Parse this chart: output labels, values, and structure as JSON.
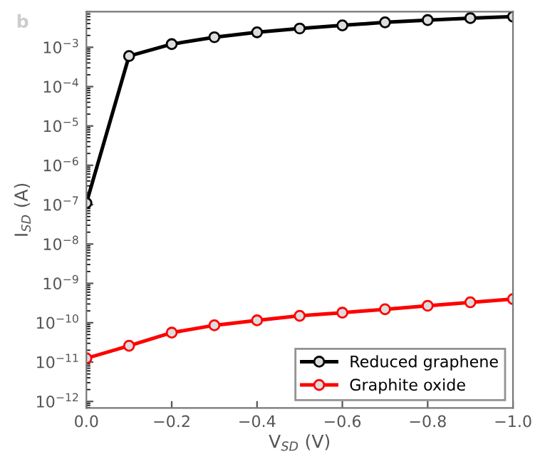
{
  "chart_data": {
    "type": "line",
    "xlabel": "V$_{SD}$ (V)",
    "ylabel": "I$_{SD}$ (A)",
    "annotations": [
      "b"
    ],
    "x": [
      0,
      -0.1,
      -0.2,
      -0.3,
      -0.4,
      -0.5,
      -0.6,
      -0.7,
      -0.8,
      -0.9,
      -1.0
    ],
    "series": [
      {
        "name": "Reduced graphene",
        "color": "#000000",
        "values": [
          1.1e-07,
          0.0006,
          0.0012,
          0.0018,
          0.0024,
          0.003,
          0.0036,
          0.0043,
          0.0049,
          0.0055,
          0.006
        ]
      },
      {
        "name": "Graphite oxide",
        "color": "#ff0000",
        "values": [
          1.25e-11,
          2.6e-11,
          5.6e-11,
          8.6e-11,
          1.15e-10,
          1.5e-10,
          1.8e-10,
          2.2e-10,
          2.7e-10,
          3.3e-10,
          4e-10
        ]
      }
    ],
    "log": "y",
    "xlim": [
      0,
      -1.0
    ],
    "ylim": [
      6.8e-13,
      0.008
    ],
    "xticks": [
      {
        "value": 0,
        "label": "0.0"
      },
      {
        "value": -0.2,
        "label": "−0.2"
      },
      {
        "value": -0.4,
        "label": "−0.4"
      },
      {
        "value": -0.6,
        "label": "−0.6"
      },
      {
        "value": -0.8,
        "label": "−0.8"
      },
      {
        "value": -1.0,
        "label": "−1.0"
      }
    ],
    "yticks": [
      {
        "value": 1e-12,
        "label": "10$^{−12}$"
      },
      {
        "value": 1e-11,
        "label": "10$^{−11}$"
      },
      {
        "value": 1e-10,
        "label": "10$^{−10}$"
      },
      {
        "value": 1e-09,
        "label": "10$^{−9}$"
      },
      {
        "value": 1e-08,
        "label": "10$^{−8}$"
      },
      {
        "value": 1e-07,
        "label": "10$^{−7}$"
      },
      {
        "value": 1e-06,
        "label": "10$^{−6}$"
      },
      {
        "value": 1e-05,
        "label": "10$^{−5}$"
      },
      {
        "value": 0.0001,
        "label": "10$^{−4}$"
      },
      {
        "value": 0.001,
        "label": "10$^{−3}$"
      }
    ],
    "grid": false,
    "legend": "bottom right",
    "marker": "circle",
    "line_style": "solid"
  }
}
